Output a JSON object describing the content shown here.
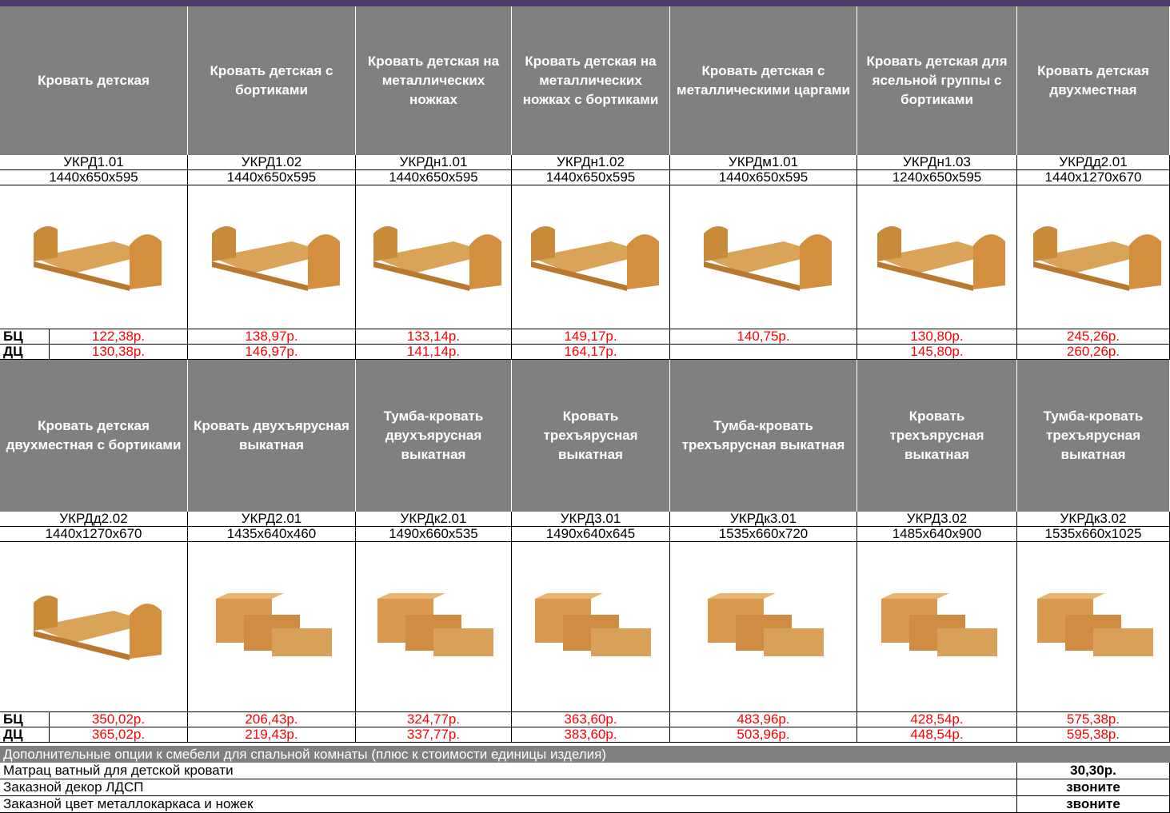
{
  "price_labels": [
    "БЦ",
    "ДЦ"
  ],
  "groups": [
    {
      "products": [
        {
          "name": "Кровать детская",
          "code": "УКРД1.01",
          "size": "1440x650x595",
          "bc": "122,38р.",
          "dc": "130,38р."
        },
        {
          "name": "Кровать детская с бортиками",
          "code": "УКРД1.02",
          "size": "1440x650x595",
          "bc": "138,97р.",
          "dc": "146,97р."
        },
        {
          "name": "Кровать детская на металлических ножках",
          "code": "УКРДн1.01",
          "size": "1440x650x595",
          "bc": "133,14р.",
          "dc": "141,14р."
        },
        {
          "name": "Кровать детская на металлических ножках с бортиками",
          "code": "УКРДн1.02",
          "size": "1440x650x595",
          "bc": "149,17р.",
          "dc": "164,17р."
        },
        {
          "name": "Кровать детская с металлическими царгами",
          "code": "УКРДм1.01",
          "size": "1440x650x595",
          "bc": "140,75р.",
          "dc": null
        },
        {
          "name": "Кровать детская для ясельной группы с бортиками",
          "code": "УКРДн1.03",
          "size": "1240x650x595",
          "bc": "130,80р.",
          "dc": "145,80р."
        },
        {
          "name": "Кровать детская двухместная",
          "code": "УКРДд2.01",
          "size": "1440x1270x670",
          "bc": "245,26р.",
          "dc": "260,26р."
        }
      ]
    },
    {
      "products": [
        {
          "name": "Кровать детская двухместная с бортиками",
          "code": "УКРДд2.02",
          "size": "1440x1270x670",
          "bc": "350,02р.",
          "dc": "365,02р."
        },
        {
          "name": "Кровать двухъярусная выкатная",
          "code": "УКРД2.01",
          "size": "1435x640x460",
          "bc": "206,43р.",
          "dc": "219,43р."
        },
        {
          "name": "Тумба-кровать двухъярусная выкатная",
          "code": "УКРДк2.01",
          "size": "1490x660x535",
          "bc": "324,77р.",
          "dc": "337,77р."
        },
        {
          "name": "Кровать трехъярусная выкатная",
          "code": "УКРД3.01",
          "size": "1490x640x645",
          "bc": "363,60р.",
          "dc": "383,60р."
        },
        {
          "name": "Тумба-кровать трехъярусная выкатная",
          "code": "УКРДк3.01",
          "size": "1535x660x720",
          "bc": "483,96р.",
          "dc": "503,96р."
        },
        {
          "name": "Кровать трехъярусная выкатная",
          "code": "УКРД3.02",
          "size": "1485x640x900",
          "bc": "428,54р.",
          "dc": "448,54р."
        },
        {
          "name": "Тумба-кровать трехъярусная выкатная",
          "code": "УКРДк3.02",
          "size": "1535x660x1025",
          "bc": "575,38р.",
          "dc": "595,38р."
        }
      ]
    }
  ],
  "options": {
    "title": "Дополнительные опции к смебели для спальной комнаты (плюс к стоимости единицы изделия)",
    "items": [
      {
        "name": "Матрац ватный для детской кровати",
        "price": "30,30р."
      },
      {
        "name": "Заказной декор ЛДСП",
        "price": "звоните"
      },
      {
        "name": "Заказной цвет металлокаркаса и ножек",
        "price": "звоните"
      }
    ]
  }
}
